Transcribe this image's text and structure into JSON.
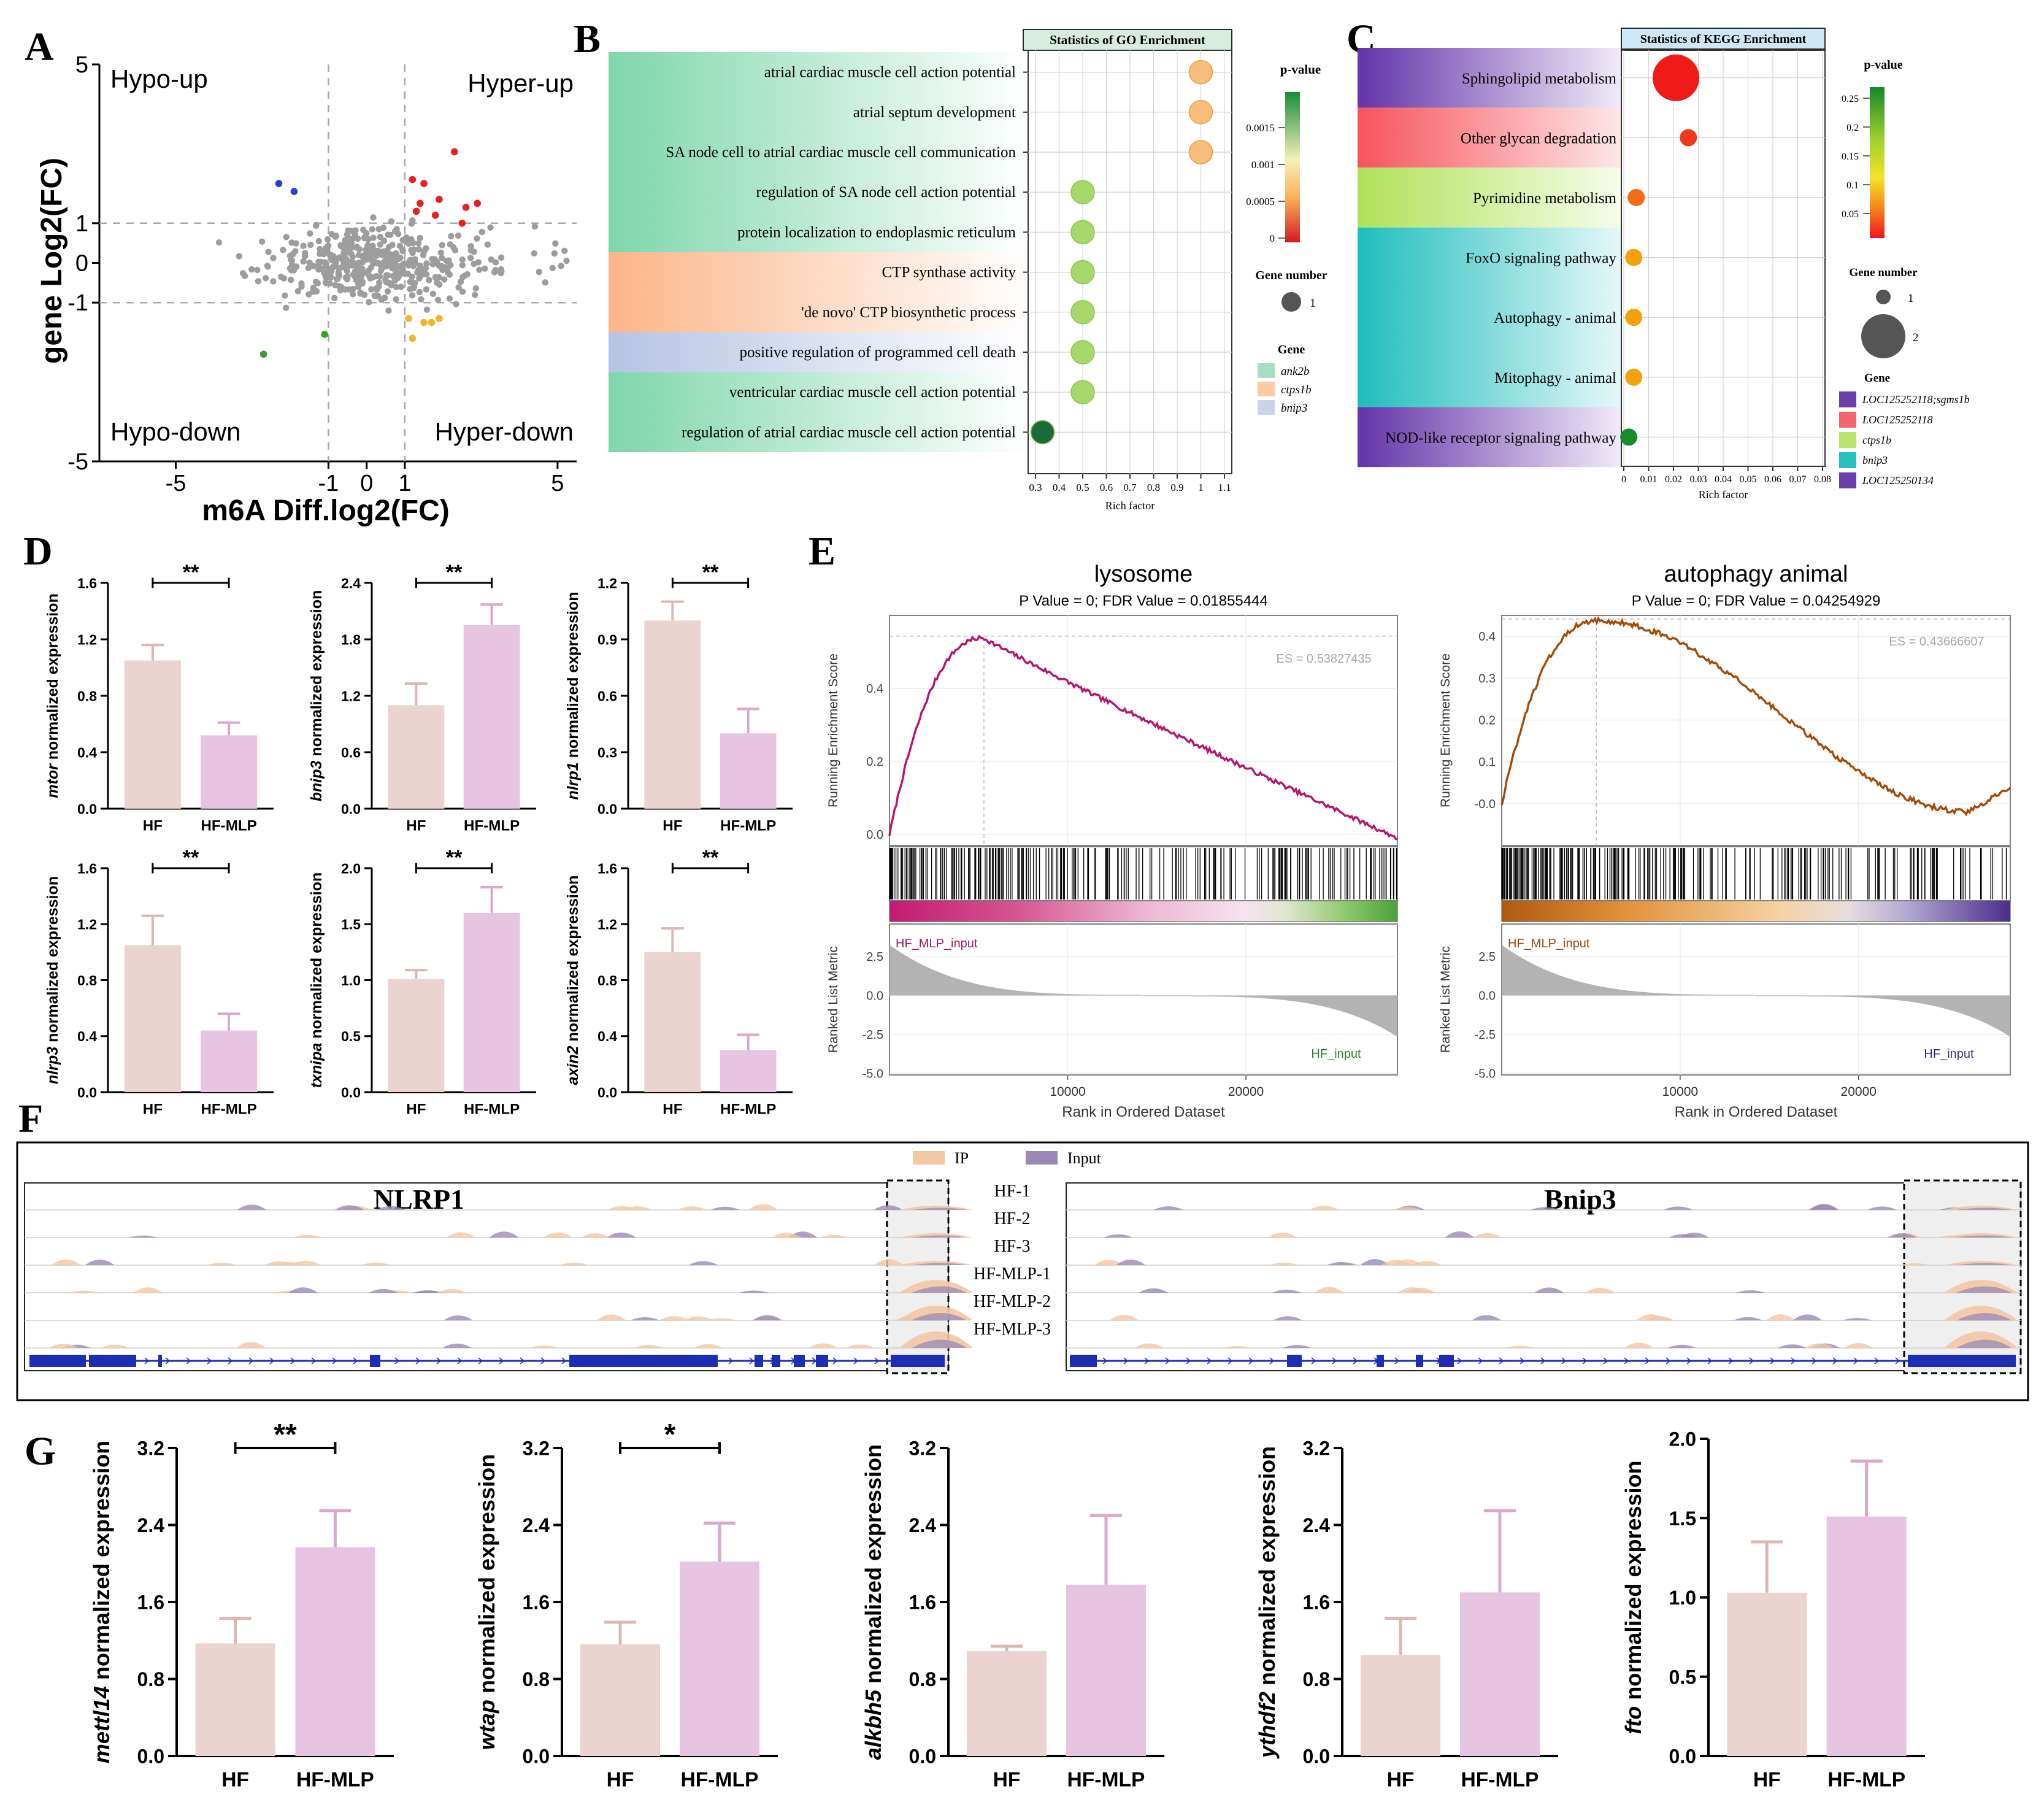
{
  "panel_letters": [
    "A",
    "B",
    "C",
    "D",
    "E",
    "F",
    "G"
  ],
  "colors": {
    "hf": "#ead3d0",
    "hfmlp": "#e7c5e0",
    "grey": "#9d9d9d",
    "red": "#e8201e",
    "blue": "#2c3fd1",
    "orange": "#f2b52a",
    "green": "#3f9c32",
    "lysosome": "#b5176f",
    "autophagy": "#a34c0a",
    "ip": "#f3c7a4",
    "input": "#9a89b5",
    "gene_track": "#1e2eb4"
  },
  "chart_data": [
    {
      "id": "A",
      "type": "scatter",
      "xlabel": "m6A Diff.log2(FC)",
      "ylabel": "gene Log2(FC)",
      "xlim": [
        -7,
        5.5
      ],
      "ylim": [
        -5,
        5
      ],
      "xticks": [
        "-5",
        "-1",
        "0",
        "1",
        "5"
      ],
      "yticks": [
        "5",
        "1",
        "0",
        "-1",
        "-5"
      ],
      "thresholds": [
        -1,
        1
      ],
      "quadrant_labels": [
        "Hypo-up",
        "Hyper-up",
        "Hypo-down",
        "Hyper-down"
      ],
      "highlighted_points": {
        "hyper_up": [
          [
            1.2,
            2.1
          ],
          [
            1.5,
            2.0
          ],
          [
            2.3,
            2.8
          ],
          [
            1.8,
            1.2
          ],
          [
            2.6,
            1.4
          ],
          [
            1.3,
            1.3
          ],
          [
            1.9,
            1.6
          ],
          [
            2.9,
            1.5
          ],
          [
            2.5,
            1.0
          ],
          [
            1.4,
            1.5
          ]
        ],
        "hypo_up": [
          [
            -2.3,
            2.0
          ],
          [
            -1.9,
            1.8
          ]
        ],
        "hyper_down": [
          [
            1.1,
            -1.4
          ],
          [
            1.5,
            -1.5
          ],
          [
            1.7,
            -1.5
          ],
          [
            1.9,
            -1.4
          ],
          [
            1.2,
            -1.9
          ]
        ],
        "hypo_down": [
          [
            -2.7,
            -2.3
          ],
          [
            -1.1,
            -1.8
          ]
        ]
      }
    },
    {
      "id": "B",
      "type": "scatter",
      "title": "Statistics of GO Enrichment",
      "xlabel": "Rich factor",
      "xlim": [
        0.3,
        1.1
      ],
      "xticks": [
        "0.3",
        "0.4",
        "0.5",
        "0.6",
        "0.7",
        "0.8",
        "0.9",
        "1",
        "1.1"
      ],
      "terms": [
        "atrial cardiac muscle cell action potential",
        "atrial septum development",
        "SA node cell to atrial cardiac muscle cell communication",
        "regulation of SA node cell action potential",
        "protein localization to endoplasmic reticulum",
        "CTP synthase activity",
        "'de novo' CTP biosynthetic process",
        "positive regulation of programmed cell death",
        "ventricular cardiac muscle cell action potential",
        "regulation of atrial cardiac muscle cell action potential"
      ],
      "rich_factor": [
        1.0,
        1.0,
        1.0,
        0.5,
        0.5,
        0.5,
        0.5,
        0.5,
        0.5,
        0.33
      ],
      "gene_number": [
        1,
        1,
        1,
        1,
        1,
        1,
        1,
        1,
        1,
        1
      ],
      "p_value": [
        0.001,
        0.001,
        0.001,
        0.0013,
        0.0013,
        0.0013,
        0.0013,
        0.0013,
        0.0013,
        0.0019
      ],
      "pvalue_legend": {
        "title": "p-value",
        "ticks": [
          "0.0015",
          "0.001",
          "0.0005",
          "0"
        ]
      },
      "size_legend": {
        "title": "Gene number",
        "values": [
          "1"
        ]
      },
      "gene_legend": {
        "title": "Gene",
        "items": [
          {
            "label": "ank2b",
            "color": "#a8dcc3"
          },
          {
            "label": "ctps1b",
            "color": "#fbcba8"
          },
          {
            "label": "bnip3",
            "color": "#cbd3e8"
          }
        ]
      }
    },
    {
      "id": "C",
      "type": "scatter",
      "title": "Statistics of KEGG Enrichment",
      "xlabel": "Rich factor",
      "xlim": [
        0,
        0.08
      ],
      "xticks": [
        "0",
        "0.01",
        "0.02",
        "0.03",
        "0.04",
        "0.05",
        "0.06",
        "0.07",
        "0.08"
      ],
      "terms": [
        "Sphingolipid metabolism",
        "Other glycan degradation",
        "Pyrimidine metabolism",
        "FoxO signaling pathway",
        "Autophagy - animal",
        "Mitophagy - animal",
        "NOD-like receptor signaling pathway"
      ],
      "rich_factor": [
        0.021,
        0.026,
        0.005,
        0.004,
        0.004,
        0.004,
        0.002
      ],
      "gene_number": [
        2,
        1,
        1,
        1,
        1,
        1,
        1
      ],
      "p_value": [
        0.005,
        0.03,
        0.08,
        0.15,
        0.15,
        0.15,
        0.27
      ],
      "pvalue_legend": {
        "title": "p-value",
        "ticks": [
          "0.25",
          "0.2",
          "0.15",
          "0.1",
          "0.05"
        ]
      },
      "size_legend": {
        "title": "Gene number",
        "values": [
          "1",
          "2"
        ]
      },
      "gene_legend": {
        "title": "Gene",
        "items": [
          {
            "label": "LOC125252118;sgms1b",
            "color": "#6b3fa9"
          },
          {
            "label": "LOC125252118",
            "color": "#f5656d"
          },
          {
            "label": "ctps1b",
            "color": "#b8e46a"
          },
          {
            "label": "bnip3",
            "color": "#28c1c0"
          },
          {
            "label": "LOC125250134",
            "color": "#6b3fa9"
          }
        ]
      }
    },
    {
      "id": "D",
      "type": "bar",
      "categories": [
        "HF",
        "HF-MLP"
      ],
      "series": [
        {
          "ylabel": "mtor normalized expression",
          "gene": "mtor",
          "values": [
            1.05,
            0.52
          ],
          "errors": [
            0.11,
            0.09
          ],
          "ylim": [
            0,
            1.6
          ],
          "yticks": [
            "0.0",
            "0.4",
            "0.8",
            "1.2",
            "1.6"
          ],
          "sig": "**"
        },
        {
          "ylabel": "bnip3 normalized expression",
          "gene": "bnip3",
          "values": [
            1.1,
            1.95
          ],
          "errors": [
            0.23,
            0.22
          ],
          "ylim": [
            0,
            2.4
          ],
          "yticks": [
            "0.0",
            "0.6",
            "1.2",
            "1.8",
            "2.4"
          ],
          "sig": "**"
        },
        {
          "ylabel": "nlrp1 normalized expression",
          "gene": "nlrp1",
          "values": [
            1.0,
            0.4
          ],
          "errors": [
            0.1,
            0.13
          ],
          "ylim": [
            0,
            1.2
          ],
          "yticks": [
            "0.0",
            "0.3",
            "0.6",
            "0.9",
            "1.2"
          ],
          "sig": "**"
        },
        {
          "ylabel": "nlrp3 normalized expression",
          "gene": "nlrp3",
          "values": [
            1.05,
            0.44
          ],
          "errors": [
            0.21,
            0.12
          ],
          "ylim": [
            0,
            1.6
          ],
          "yticks": [
            "0.0",
            "0.4",
            "0.8",
            "1.2",
            "1.6"
          ],
          "sig": "**"
        },
        {
          "ylabel": "txnipa normalized expression",
          "gene": "txnipa",
          "values": [
            1.01,
            1.6
          ],
          "errors": [
            0.08,
            0.23
          ],
          "ylim": [
            0,
            2.0
          ],
          "yticks": [
            "0.0",
            "0.5",
            "1.0",
            "1.5",
            "2.0"
          ],
          "sig": "**"
        },
        {
          "ylabel": "axin2 normalized expression",
          "gene": "axin2",
          "values": [
            1.0,
            0.3
          ],
          "errors": [
            0.17,
            0.11
          ],
          "ylim": [
            0,
            1.6
          ],
          "yticks": [
            "0.0",
            "0.4",
            "0.8",
            "1.2",
            "1.6"
          ],
          "sig": "**"
        }
      ]
    },
    {
      "id": "E",
      "type": "line",
      "plots": [
        {
          "title": "lysosome",
          "subtitle": "P Value = 0; FDR Value = 0.01855444",
          "es_label": "ES = 0.53827435",
          "es": 0.538,
          "peak_rank": 5300,
          "ylim": [
            -0.03,
            0.6
          ],
          "yticks": [
            "0.0",
            "0.2",
            "0.4"
          ],
          "top_label": "HF_MLP_input",
          "bottom_label": "HF_input"
        },
        {
          "title": "autophagy animal",
          "subtitle": "P Value = 0; FDR Value = 0.04254929",
          "es_label": "ES = 0.43666607",
          "es": 0.437,
          "peak_rank": 5300,
          "ylim": [
            -0.1,
            0.45
          ],
          "yticks": [
            "-0.0",
            "0.1",
            "0.2",
            "0.3",
            "0.4"
          ],
          "top_label": "HF_MLP_input",
          "bottom_label": "HF_input"
        }
      ],
      "ylabel_top": "Running Enrichment Score",
      "ylabel_bottom": "Ranked List Metric",
      "xlabel": "Rank in Ordered Dataset",
      "xlim": [
        0,
        28500
      ],
      "xticks": [
        "10000",
        "20000"
      ],
      "metric_ticks": [
        "2.5",
        "0.0",
        "-2.5",
        "-5.0"
      ]
    },
    {
      "id": "F",
      "type": "area",
      "legend": [
        "IP",
        "Input"
      ],
      "samples": [
        "HF-1",
        "HF-2",
        "HF-3",
        "HF-MLP-1",
        "HF-MLP-2",
        "HF-MLP-3"
      ],
      "genes": [
        "NLRP1",
        "Bnip3"
      ]
    },
    {
      "id": "G",
      "type": "bar",
      "categories": [
        "HF",
        "HF-MLP"
      ],
      "series": [
        {
          "ylabel": "mettl14 normalized expression",
          "gene": "mettl14",
          "values": [
            1.17,
            2.17
          ],
          "errors": [
            0.26,
            0.38
          ],
          "ylim": [
            0,
            3.2
          ],
          "yticks": [
            "0.0",
            "0.8",
            "1.6",
            "2.4",
            "3.2"
          ],
          "sig": "**"
        },
        {
          "ylabel": "wtap normalized expression",
          "gene": "wtap",
          "values": [
            1.16,
            2.02
          ],
          "errors": [
            0.23,
            0.4
          ],
          "ylim": [
            0,
            3.2
          ],
          "yticks": [
            "0.0",
            "0.8",
            "1.6",
            "2.4",
            "3.2"
          ],
          "sig": "*"
        },
        {
          "ylabel": "alkbh5 normalized expression",
          "gene": "alkbh5",
          "values": [
            1.09,
            1.78
          ],
          "errors": [
            0.05,
            0.72
          ],
          "ylim": [
            0,
            3.2
          ],
          "yticks": [
            "0.0",
            "0.8",
            "1.6",
            "2.4",
            "3.2"
          ],
          "sig": ""
        },
        {
          "ylabel": "ythdf2 normalized expression",
          "gene": "ythdf2",
          "values": [
            1.05,
            1.7
          ],
          "errors": [
            0.38,
            0.85
          ],
          "ylim": [
            0,
            3.2
          ],
          "yticks": [
            "0.0",
            "0.8",
            "1.6",
            "2.4",
            "3.2"
          ],
          "sig": ""
        },
        {
          "ylabel": "fto normalized expression",
          "gene": "fto",
          "values": [
            1.03,
            1.51
          ],
          "errors": [
            0.32,
            0.35
          ],
          "ylim": [
            0,
            2.0
          ],
          "yticks": [
            "0.0",
            "0.5",
            "1.0",
            "1.5",
            "2.0"
          ],
          "sig": ""
        }
      ]
    }
  ]
}
